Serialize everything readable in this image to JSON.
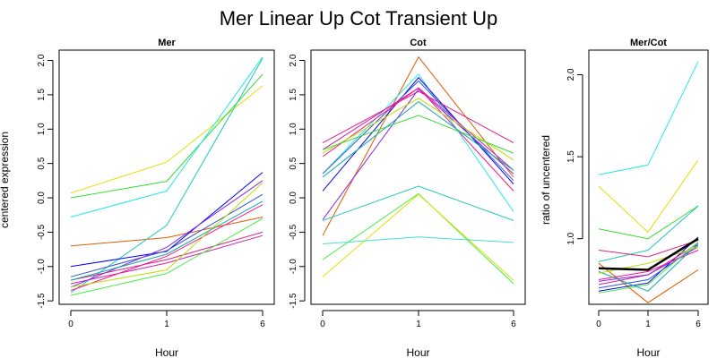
{
  "title": "Mer Linear Up Cot Transient Up",
  "chart_data": [
    {
      "type": "line",
      "title": "Mer",
      "xlabel": "Hour",
      "ylabel": "centered expression",
      "categories": [
        "0",
        "1",
        "6"
      ],
      "ylim": [
        -1.55,
        2.15
      ],
      "yticks": [
        -1.5,
        -1.0,
        -0.5,
        0.0,
        0.5,
        1.0,
        1.5,
        2.0
      ],
      "ytick_labels": [
        "-1.5",
        "-1.0",
        "-0.5",
        "0.0",
        "0.5",
        "1.0",
        "1.5",
        "2.0"
      ],
      "series": [
        {
          "color": "#e0e000",
          "values": [
            0.07,
            0.52,
            1.63
          ]
        },
        {
          "color": "#33dd33",
          "values": [
            0.0,
            0.24,
            1.8
          ]
        },
        {
          "color": "#22e8e8",
          "values": [
            -0.28,
            0.1,
            2.05
          ]
        },
        {
          "color": "#e05a00",
          "values": [
            -0.7,
            -0.58,
            -0.28
          ]
        },
        {
          "color": "#22c8b8",
          "values": [
            -1.38,
            -0.4,
            2.03
          ]
        },
        {
          "color": "#0000ee",
          "values": [
            -1.0,
            -0.78,
            0.37
          ]
        },
        {
          "color": "#3355dd",
          "values": [
            -1.15,
            -0.77,
            0.05
          ]
        },
        {
          "color": "#dd2288",
          "values": [
            -1.2,
            -0.9,
            -0.5
          ]
        },
        {
          "color": "#cc22aa",
          "values": [
            -1.25,
            -0.95,
            -0.55
          ]
        },
        {
          "color": "#8a2be2",
          "values": [
            -1.3,
            -0.72,
            0.25
          ]
        },
        {
          "color": "#ff1493",
          "values": [
            -1.35,
            -0.85,
            -0.1
          ]
        },
        {
          "color": "#44ee44",
          "values": [
            -1.42,
            -1.1,
            -0.3
          ]
        },
        {
          "color": "#bbdd00",
          "values": [
            -1.3,
            -1.05,
            0.22
          ]
        },
        {
          "color": "#11aaaa",
          "values": [
            -1.2,
            -0.82,
            -0.05
          ]
        }
      ]
    },
    {
      "type": "line",
      "title": "Cot",
      "xlabel": "Hour",
      "categories": [
        "0",
        "1",
        "6"
      ],
      "ylim": [
        -1.55,
        2.15
      ],
      "yticks": [
        -1.5,
        -1.0,
        -0.5,
        0.0,
        0.5,
        1.0,
        1.5,
        2.0
      ],
      "ytick_labels": [
        "-1.5",
        "-1.0",
        "-0.5",
        "0.0",
        "0.5",
        "1.0",
        "1.5",
        "2.0"
      ],
      "series": [
        {
          "color": "#e05a00",
          "values": [
            -0.55,
            2.05,
            0.3
          ]
        },
        {
          "color": "#22e8e8",
          "values": [
            0.35,
            1.8,
            -0.2
          ]
        },
        {
          "color": "#0000ee",
          "values": [
            0.1,
            1.75,
            0.2
          ]
        },
        {
          "color": "#3355dd",
          "values": [
            0.35,
            1.7,
            0.25
          ]
        },
        {
          "color": "#dd2288",
          "values": [
            0.8,
            1.55,
            0.8
          ]
        },
        {
          "color": "#cc22aa",
          "values": [
            0.7,
            1.6,
            0.4
          ]
        },
        {
          "color": "#8a2be2",
          "values": [
            -0.32,
            1.58,
            0.35
          ]
        },
        {
          "color": "#ff1493",
          "values": [
            0.6,
            1.6,
            0.1
          ]
        },
        {
          "color": "#bbdd00",
          "values": [
            0.65,
            1.45,
            0.55
          ]
        },
        {
          "color": "#33dd33",
          "values": [
            0.7,
            1.2,
            0.65
          ]
        },
        {
          "color": "#11aaaa",
          "values": [
            0.3,
            1.4,
            0.4
          ]
        },
        {
          "color": "#22c8b8",
          "values": [
            -0.33,
            0.17,
            -0.33
          ]
        },
        {
          "color": "#44ee44",
          "values": [
            -0.9,
            0.06,
            -1.25
          ]
        },
        {
          "color": "#e0e000",
          "values": [
            -1.15,
            0.05,
            -1.2
          ]
        },
        {
          "color": "#40e0d0",
          "values": [
            -0.67,
            -0.57,
            -0.65
          ]
        }
      ]
    },
    {
      "type": "line",
      "title": "Mer/Cot",
      "xlabel": "Hour",
      "ylabel": "ratio of uncentered",
      "categories": [
        "0",
        "1",
        "6"
      ],
      "ylim": [
        0.6,
        2.15
      ],
      "yticks": [
        1.0,
        1.5,
        2.0
      ],
      "ytick_labels": [
        "1.0",
        "1.5",
        "2.0"
      ],
      "series": [
        {
          "color": "#22e8e8",
          "values": [
            1.39,
            1.45,
            2.08
          ]
        },
        {
          "color": "#e0e000",
          "values": [
            1.32,
            1.04,
            1.48
          ]
        },
        {
          "color": "#33dd33",
          "values": [
            1.06,
            1.0,
            1.2
          ]
        },
        {
          "color": "#22c8b8",
          "values": [
            0.86,
            0.93,
            1.2
          ]
        },
        {
          "color": "#dd2288",
          "values": [
            0.93,
            0.89,
            0.99
          ]
        },
        {
          "color": "#e05a00",
          "values": [
            0.85,
            0.61,
            0.81
          ]
        },
        {
          "color": "#0000ee",
          "values": [
            0.68,
            0.73,
            1.01
          ]
        },
        {
          "color": "#3355dd",
          "values": [
            0.7,
            0.75,
            0.96
          ]
        },
        {
          "color": "#cc22aa",
          "values": [
            0.72,
            0.78,
            0.97
          ]
        },
        {
          "color": "#8a2be2",
          "values": [
            0.74,
            0.78,
            0.95
          ]
        },
        {
          "color": "#ff1493",
          "values": [
            0.75,
            0.8,
            0.93
          ]
        },
        {
          "color": "#44ee44",
          "values": [
            0.67,
            0.72,
            0.98
          ]
        },
        {
          "color": "#11aaaa",
          "values": [
            0.8,
            0.68,
            0.97
          ]
        },
        {
          "color": "#bbdd00",
          "values": [
            0.79,
            0.85,
            0.95
          ]
        },
        {
          "color": "#000000",
          "values": [
            0.82,
            0.81,
            1.0
          ],
          "bold": true
        }
      ]
    }
  ]
}
